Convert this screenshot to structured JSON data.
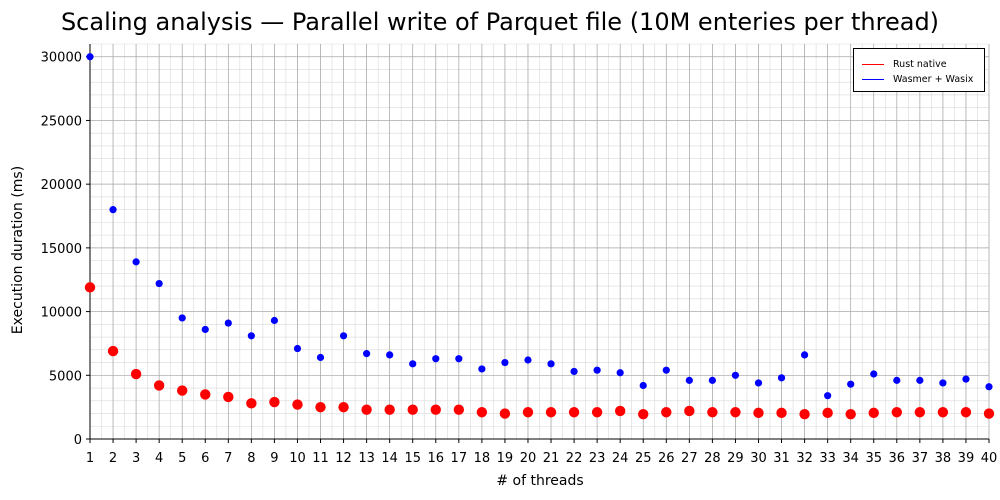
{
  "chart_data": {
    "type": "scatter",
    "title": "Scaling analysis — Parallel write of Parquet file (10M enteries per thread)",
    "xlabel": "# of threads",
    "ylabel": "Execution duration (ms)",
    "xlim": [
      1,
      40
    ],
    "ylim": [
      0,
      31000
    ],
    "x_ticks": [
      1,
      2,
      3,
      4,
      5,
      6,
      7,
      8,
      9,
      10,
      11,
      12,
      13,
      14,
      15,
      16,
      17,
      18,
      19,
      20,
      21,
      22,
      23,
      24,
      25,
      26,
      27,
      28,
      29,
      30,
      31,
      32,
      33,
      34,
      35,
      36,
      37,
      38,
      39,
      40
    ],
    "y_ticks": [
      0,
      5000,
      10000,
      15000,
      20000,
      25000,
      30000
    ],
    "grid": true,
    "legend_position": "top-right",
    "x": [
      1,
      2,
      3,
      4,
      5,
      6,
      7,
      8,
      9,
      10,
      11,
      12,
      13,
      14,
      15,
      16,
      17,
      18,
      19,
      20,
      21,
      22,
      23,
      24,
      25,
      26,
      27,
      28,
      29,
      30,
      31,
      32,
      33,
      34,
      35,
      36,
      37,
      38,
      39,
      40
    ],
    "series": [
      {
        "name": "Rust native",
        "color": "#ff0000",
        "values": [
          11900,
          6900,
          5100,
          4200,
          3800,
          3500,
          3300,
          2800,
          2900,
          2700,
          2500,
          2500,
          2300,
          2300,
          2300,
          2300,
          2300,
          2100,
          2000,
          2100,
          2100,
          2100,
          2100,
          2200,
          1950,
          2100,
          2200,
          2100,
          2100,
          2050,
          2050,
          1950,
          2050,
          1950,
          2050,
          2100,
          2100,
          2100,
          2100,
          2000
        ]
      },
      {
        "name": "Wasmer + Wasix",
        "color": "#0000ff",
        "values": [
          30000,
          18000,
          13900,
          12200,
          9500,
          8600,
          9100,
          8100,
          9300,
          7100,
          6400,
          8100,
          6700,
          6600,
          5900,
          6300,
          6300,
          5500,
          6000,
          6200,
          5900,
          5300,
          5400,
          5200,
          4200,
          5400,
          4600,
          4600,
          5000,
          4400,
          4800,
          6600,
          3400,
          4300,
          5100,
          4600,
          4600,
          4400,
          4700,
          4100
        ]
      }
    ]
  }
}
